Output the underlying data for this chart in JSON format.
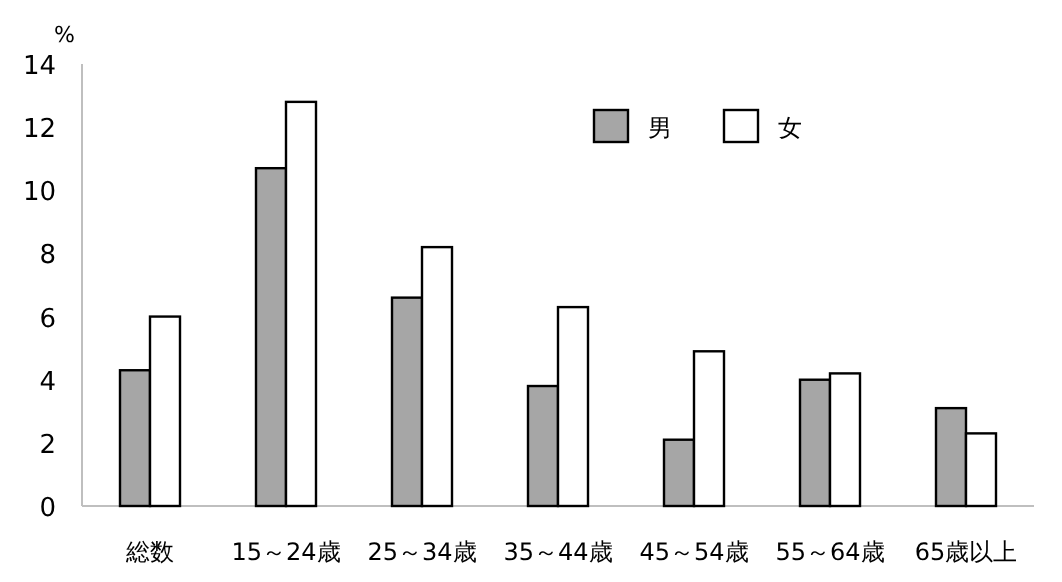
{
  "chart_data": {
    "type": "bar",
    "ylabel": "%",
    "categories": [
      "総数",
      "15～24歳",
      "25～34歳",
      "35～44歳",
      "45～54歳",
      "55～64歳",
      "65歳以上"
    ],
    "series": [
      {
        "name": "男",
        "color": "#a6a6a6",
        "values": [
          4.3,
          10.7,
          6.6,
          3.8,
          2.1,
          4.0,
          3.1
        ]
      },
      {
        "name": "女",
        "color": "#ffffff",
        "values": [
          6.0,
          12.8,
          8.2,
          6.3,
          4.9,
          4.2,
          2.3
        ]
      }
    ],
    "ylim": [
      0,
      14
    ],
    "yticks": [
      0,
      2,
      4,
      6,
      8,
      10,
      12,
      14
    ],
    "grid": false,
    "legend": "top"
  }
}
